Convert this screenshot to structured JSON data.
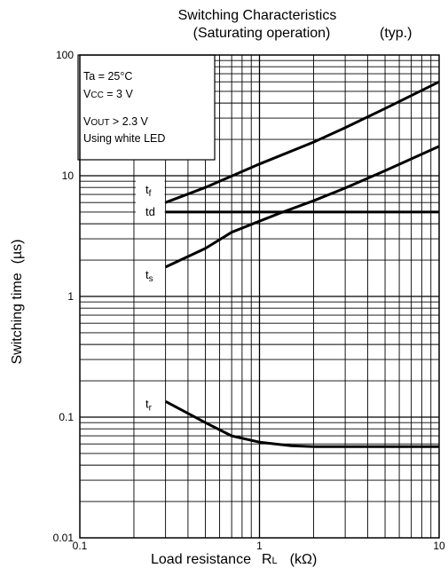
{
  "chart_data": {
    "type": "line",
    "title_line1": "Switching Characteristics",
    "title_line2": "(Saturating operation)",
    "title_suffix": "(typ.)",
    "xlabel": {
      "main": "Load resistance",
      "var": "R",
      "sub": "L",
      "unit": "(kΩ)"
    },
    "ylabel": {
      "main": "Switching time",
      "unit": "(µs)"
    },
    "x_scale": "log",
    "y_scale": "log",
    "xlim": [
      0.1,
      10
    ],
    "ylim": [
      0.01,
      100
    ],
    "x_ticks": [
      {
        "value": 0.1,
        "label": "0.1"
      },
      {
        "value": 1,
        "label": "1"
      },
      {
        "value": 10,
        "label": "10"
      }
    ],
    "y_ticks": [
      {
        "value": 0.01,
        "label": "0.01"
      },
      {
        "value": 0.1,
        "label": "0.1"
      },
      {
        "value": 1,
        "label": "1"
      },
      {
        "value": 10,
        "label": "10"
      },
      {
        "value": 100,
        "label": "100"
      }
    ],
    "grid": true,
    "conditions": [
      {
        "id": "ta",
        "text": "Ta = 25°C"
      },
      {
        "id": "vcc",
        "main": "V",
        "sub": "CC",
        "rest": " = 3 V"
      },
      {
        "id": "vout",
        "main": "V",
        "sub": "OUT",
        "rest": " > 2.3 V"
      },
      {
        "id": "led",
        "text": "Using white LED"
      }
    ],
    "series": [
      {
        "name": "tf",
        "main": "t",
        "sub": "f",
        "label_value": 7.6,
        "x": [
          0.3,
          0.5,
          1,
          2,
          3,
          5,
          10
        ],
        "y": [
          6,
          8,
          12.5,
          19,
          25,
          36,
          60
        ]
      },
      {
        "name": "td",
        "main": "td",
        "sub": "",
        "label_value": 5.0,
        "x": [
          0.3,
          1,
          10
        ],
        "y": [
          5,
          5,
          5
        ]
      },
      {
        "name": "ts",
        "main": "t",
        "sub": "s",
        "label_value": 1.5,
        "x": [
          0.3,
          0.5,
          0.7,
          1,
          1.3,
          2,
          3,
          5,
          10
        ],
        "y": [
          1.75,
          2.5,
          3.4,
          4.2,
          4.9,
          6.2,
          7.9,
          11,
          17.5
        ]
      },
      {
        "name": "tr",
        "main": "t",
        "sub": "r",
        "label_value": 0.128,
        "x": [
          0.3,
          0.5,
          0.7,
          1,
          1.5,
          2,
          3,
          5,
          10
        ],
        "y": [
          0.135,
          0.09,
          0.07,
          0.062,
          0.058,
          0.057,
          0.057,
          0.057,
          0.057
        ]
      }
    ]
  }
}
